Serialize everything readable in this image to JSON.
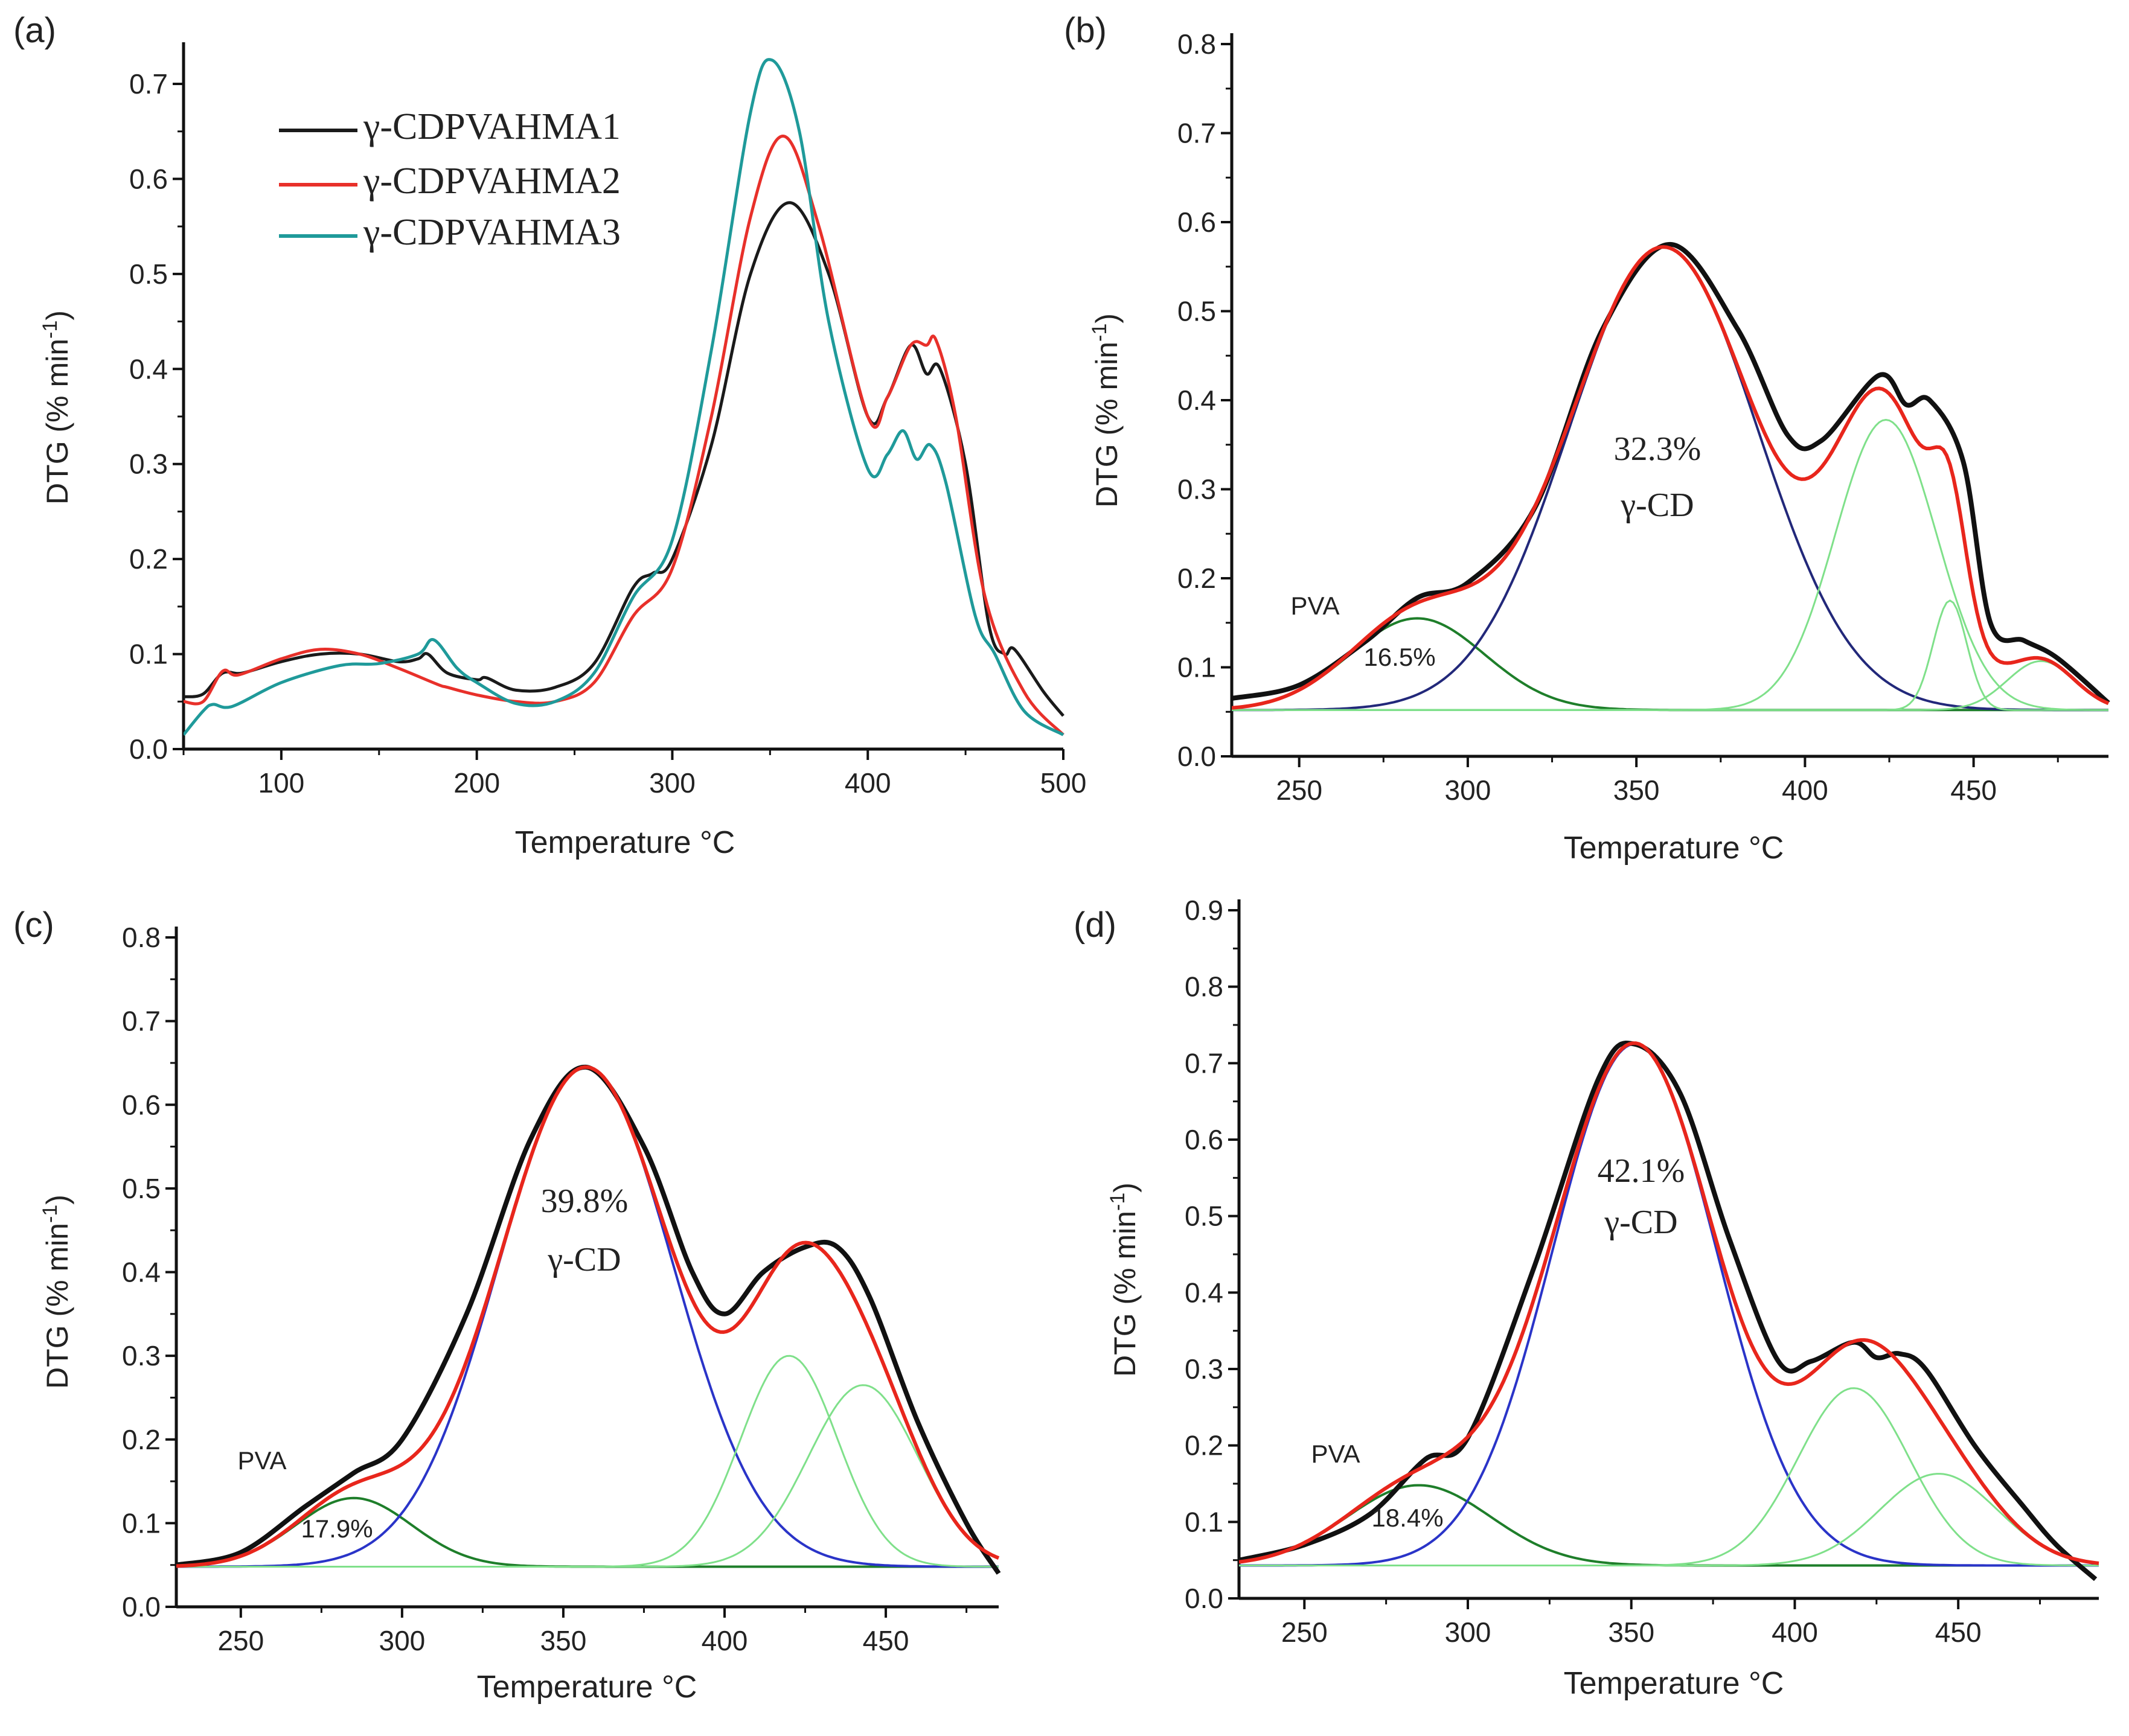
{
  "chart_data": [
    {
      "panel_label": "(a)",
      "type": "line",
      "xlabel": "Temperature °C",
      "ylabel": "DTG (% min",
      "ylabel_sup": "-1",
      "ylabel_end": ")",
      "xlim": [
        50,
        500
      ],
      "ylim": [
        0,
        0.75
      ],
      "xticks": [
        100,
        200,
        300,
        400,
        500
      ],
      "yticks": [
        0.0,
        0.1,
        0.2,
        0.3,
        0.4,
        0.5,
        0.6,
        0.7
      ],
      "legend_placement": "top-left",
      "series": [
        {
          "name": "γ-CDPVAHMA1",
          "color": "#1a1a1a",
          "x": [
            50,
            60,
            70,
            80,
            100,
            120,
            140,
            160,
            170,
            175,
            185,
            200,
            205,
            220,
            240,
            260,
            280,
            290,
            300,
            320,
            340,
            360,
            380,
            400,
            410,
            422,
            430,
            437,
            450,
            462,
            470,
            475,
            490,
            500
          ],
          "y": [
            0.055,
            0.058,
            0.08,
            0.08,
            0.092,
            0.1,
            0.1,
            0.092,
            0.095,
            0.1,
            0.08,
            0.073,
            0.075,
            0.062,
            0.065,
            0.09,
            0.17,
            0.185,
            0.2,
            0.32,
            0.5,
            0.575,
            0.5,
            0.35,
            0.37,
            0.425,
            0.395,
            0.4,
            0.3,
            0.13,
            0.1,
            0.105,
            0.06,
            0.035
          ]
        },
        {
          "name": "γ-CDPVAHMA2",
          "color": "#e8302a",
          "x": [
            50,
            60,
            70,
            78,
            100,
            120,
            140,
            160,
            180,
            185,
            200,
            220,
            240,
            260,
            280,
            300,
            320,
            340,
            357,
            375,
            400,
            410,
            422,
            430,
            435,
            445,
            460,
            480,
            500
          ],
          "y": [
            0.05,
            0.05,
            0.082,
            0.078,
            0.095,
            0.105,
            0.1,
            0.085,
            0.068,
            0.065,
            0.057,
            0.05,
            0.05,
            0.07,
            0.14,
            0.19,
            0.35,
            0.56,
            0.645,
            0.55,
            0.35,
            0.37,
            0.425,
            0.425,
            0.43,
            0.35,
            0.16,
            0.06,
            0.015
          ]
        },
        {
          "name": "γ-CDPVAHMA3",
          "color": "#1f9a9a",
          "x": [
            50,
            60,
            65,
            75,
            100,
            130,
            150,
            170,
            178,
            190,
            200,
            220,
            240,
            260,
            280,
            300,
            320,
            340,
            351,
            365,
            380,
            400,
            410,
            418,
            425,
            432,
            440,
            455,
            465,
            480,
            500
          ],
          "y": [
            0.015,
            0.04,
            0.047,
            0.045,
            0.07,
            0.088,
            0.09,
            0.1,
            0.115,
            0.085,
            0.07,
            0.048,
            0.05,
            0.08,
            0.16,
            0.22,
            0.42,
            0.67,
            0.725,
            0.65,
            0.45,
            0.295,
            0.31,
            0.335,
            0.305,
            0.32,
            0.28,
            0.14,
            0.1,
            0.04,
            0.015
          ]
        }
      ]
    },
    {
      "panel_label": "(b)",
      "type": "line",
      "xlabel": "Temperature °C",
      "ylabel": "DTG (% min",
      "ylabel_sup": "-1",
      "ylabel_end": ")",
      "xlim": [
        230,
        490
      ],
      "ylim": [
        0,
        0.8
      ],
      "xticks": [
        250,
        300,
        350,
        400,
        450
      ],
      "yticks": [
        0.0,
        0.1,
        0.2,
        0.3,
        0.4,
        0.5,
        0.6,
        0.7,
        0.8
      ],
      "baseline": 0.052,
      "experimental": {
        "name": "experimental",
        "color": "#111111",
        "x": [
          230,
          250,
          270,
          285,
          300,
          320,
          340,
          360,
          380,
          395,
          405,
          422,
          430,
          437,
          447,
          455,
          465,
          475,
          490
        ],
        "y": [
          0.065,
          0.08,
          0.13,
          0.178,
          0.195,
          0.28,
          0.48,
          0.575,
          0.48,
          0.36,
          0.355,
          0.428,
          0.395,
          0.4,
          0.33,
          0.15,
          0.13,
          0.11,
          0.06
        ]
      },
      "fit_color": "#e8261c",
      "components": [
        {
          "name": "PVA",
          "color": "#1e7e2a",
          "center": 285,
          "amplitude": 0.103,
          "sigma": 20
        },
        {
          "name": "γ-CD",
          "color": "#22287a",
          "center": 358,
          "amplitude": 0.52,
          "sigma": 28
        },
        {
          "name": "peak-3",
          "color": "#7fe08a",
          "center": 424,
          "amplitude": 0.326,
          "sigma": 15
        },
        {
          "name": "peak-4",
          "color": "#7fe08a",
          "center": 443,
          "amplitude": 0.123,
          "sigma": 5
        },
        {
          "name": "peak-5",
          "color": "#7fe08a",
          "center": 470,
          "amplitude": 0.055,
          "sigma": 10
        }
      ],
      "annotations": {
        "pva_label": "PVA",
        "pva_percent": "16.5%",
        "cd_percent": "32.3%",
        "cd_label": "γ-CD"
      }
    },
    {
      "panel_label": "(c)",
      "type": "line",
      "xlabel": "Temperature °C",
      "ylabel": "DTG (% min",
      "ylabel_sup": "-1",
      "ylabel_end": ")",
      "xlim": [
        230,
        485
      ],
      "ylim": [
        0,
        0.8
      ],
      "xticks": [
        250,
        300,
        350,
        400,
        450
      ],
      "yticks": [
        0.0,
        0.1,
        0.2,
        0.3,
        0.4,
        0.5,
        0.6,
        0.7,
        0.8
      ],
      "baseline": 0.048,
      "experimental": {
        "name": "experimental",
        "color": "#111111",
        "x": [
          230,
          250,
          270,
          285,
          300,
          320,
          340,
          357,
          375,
          390,
          400,
          412,
          425,
          435,
          445,
          460,
          475,
          485
        ],
        "y": [
          0.05,
          0.065,
          0.12,
          0.16,
          0.2,
          0.35,
          0.56,
          0.645,
          0.55,
          0.4,
          0.35,
          0.4,
          0.43,
          0.43,
          0.37,
          0.22,
          0.1,
          0.04
        ]
      },
      "fit_color": "#e8261c",
      "components": [
        {
          "name": "PVA",
          "color": "#1e7e2a",
          "center": 285,
          "amplitude": 0.082,
          "sigma": 18
        },
        {
          "name": "γ-CD",
          "color": "#2a34c8",
          "center": 357,
          "amplitude": 0.597,
          "sigma": 27
        },
        {
          "name": "peak-3",
          "color": "#7fe08a",
          "center": 420,
          "amplitude": 0.252,
          "sigma": 15
        },
        {
          "name": "peak-4",
          "color": "#7fe08a",
          "center": 443,
          "amplitude": 0.217,
          "sigma": 17
        }
      ],
      "annotations": {
        "pva_label": "PVA",
        "pva_percent": "17.9%",
        "cd_percent": "39.8%",
        "cd_label": "γ-CD"
      }
    },
    {
      "panel_label": "(d)",
      "type": "line",
      "xlabel": "Temperature °C",
      "ylabel": "DTG (% min",
      "ylabel_sup": "-1",
      "ylabel_end": ")",
      "xlim": [
        230,
        493
      ],
      "ylim": [
        0,
        0.9
      ],
      "xticks": [
        250,
        300,
        350,
        400,
        450
      ],
      "yticks": [
        0.0,
        0.1,
        0.2,
        0.3,
        0.4,
        0.5,
        0.6,
        0.7,
        0.8,
        0.9
      ],
      "baseline": 0.043,
      "experimental": {
        "name": "experimental",
        "color": "#111111",
        "x": [
          230,
          250,
          270,
          287,
          300,
          320,
          340,
          351,
          365,
          380,
          395,
          405,
          418,
          425,
          432,
          440,
          455,
          470,
          480,
          492
        ],
        "y": [
          0.05,
          0.07,
          0.11,
          0.182,
          0.21,
          0.43,
          0.68,
          0.725,
          0.66,
          0.47,
          0.31,
          0.31,
          0.335,
          0.315,
          0.32,
          0.3,
          0.2,
          0.12,
          0.07,
          0.025
        ]
      },
      "fit_color": "#e8261c",
      "components": [
        {
          "name": "PVA",
          "color": "#1e7e2a",
          "center": 285,
          "amplitude": 0.105,
          "sigma": 22
        },
        {
          "name": "γ-CD",
          "color": "#2a34c8",
          "center": 351,
          "amplitude": 0.682,
          "sigma": 25
        },
        {
          "name": "peak-3",
          "color": "#7fe08a",
          "center": 418,
          "amplitude": 0.232,
          "sigma": 17
        },
        {
          "name": "peak-4",
          "color": "#7fe08a",
          "center": 444,
          "amplitude": 0.12,
          "sigma": 18
        }
      ],
      "annotations": {
        "pva_label": "PVA",
        "pva_percent": "18.4%",
        "cd_percent": "42.1%",
        "cd_label": "γ-CD"
      }
    }
  ]
}
